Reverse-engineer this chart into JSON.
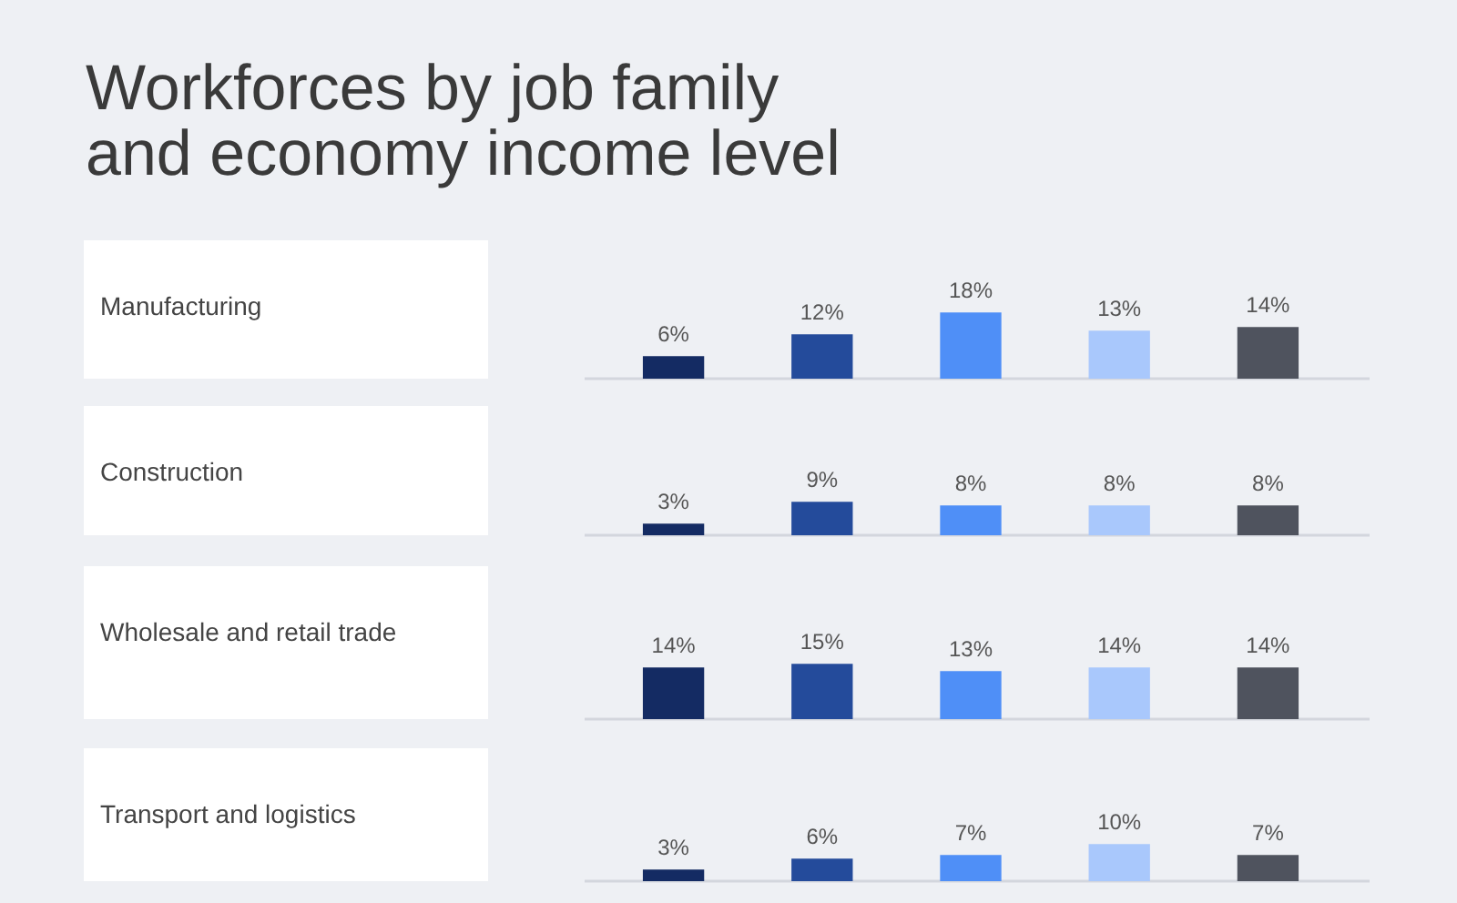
{
  "chart_data": [
    {
      "type": "bar",
      "title": "Workforces by job family and economy income level",
      "ylabel": "Manufacturing",
      "categories": [
        null,
        null,
        null,
        null,
        null
      ],
      "values": [
        6,
        12,
        18,
        13,
        14
      ],
      "colors": [
        "#142b63",
        "#244b9b",
        "#4f8ff7",
        "#a9c8fc",
        "#4f535e"
      ],
      "value_labels": [
        "6%",
        "12%",
        "18%",
        "13%",
        "14%"
      ]
    },
    {
      "type": "bar",
      "ylabel": "Construction",
      "categories": [
        null,
        null,
        null,
        null,
        null
      ],
      "values": [
        3,
        9,
        8,
        8,
        8
      ],
      "colors": [
        "#142b63",
        "#244b9b",
        "#4f8ff7",
        "#a9c8fc",
        "#4f535e"
      ],
      "value_labels": [
        "3%",
        "9%",
        "8%",
        "8%",
        "8%"
      ]
    },
    {
      "type": "bar",
      "ylabel": "Wholesale and retail trade",
      "categories": [
        null,
        null,
        null,
        null,
        null
      ],
      "values": [
        14,
        15,
        13,
        14,
        14
      ],
      "colors": [
        "#142b63",
        "#244b9b",
        "#4f8ff7",
        "#a9c8fc",
        "#4f535e"
      ],
      "value_labels": [
        "14%",
        "15%",
        "13%",
        "14%",
        "14%"
      ]
    },
    {
      "type": "bar",
      "ylabel": "Transport and logistics",
      "categories": [
        null,
        null,
        null,
        null,
        null
      ],
      "values": [
        3,
        6,
        7,
        10,
        7
      ],
      "colors": [
        "#142b63",
        "#244b9b",
        "#4f8ff7",
        "#a9c8fc",
        "#4f535e"
      ],
      "value_labels": [
        "3%",
        "6%",
        "7%",
        "10%",
        "7%"
      ]
    }
  ]
}
